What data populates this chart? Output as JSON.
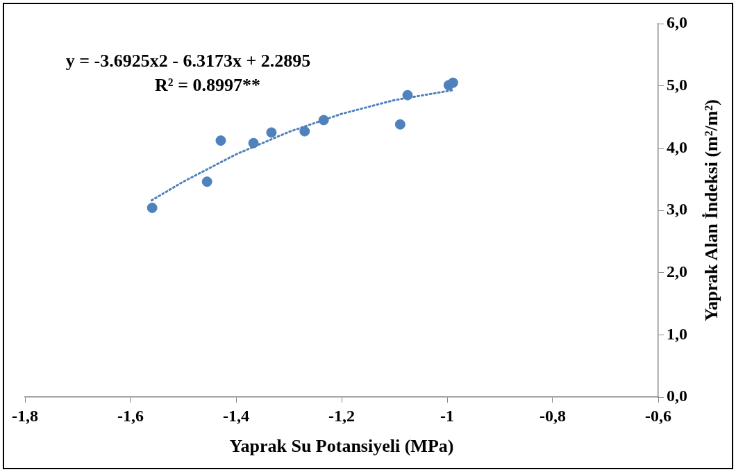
{
  "chart_data": {
    "type": "scatter",
    "xlabel": "Yaprak Su Potansiyeli (MPa)",
    "y2label": "Yaprak Alan İndeksi (m²/m²)",
    "annotations": [
      "y = -3.6925x2 - 6.3173x + 2.2895",
      "R² = 0.8997**"
    ],
    "series": [
      {
        "type": "scatter",
        "color": "#4f81bd",
        "marker": "circle",
        "x": [
          -1.559,
          -1.455,
          -1.429,
          -1.367,
          -1.333,
          -1.27,
          -1.234,
          -1.089,
          -1.075,
          -0.997,
          -0.989
        ],
        "values": [
          3.04,
          3.46,
          4.12,
          4.08,
          4.25,
          4.27,
          4.45,
          4.38,
          4.85,
          5.01,
          5.05
        ],
        "axis": "y2"
      },
      {
        "type": "line",
        "color": "#4f81bd",
        "marker": "none",
        "line_style": "dotted",
        "x": [
          -1.56,
          -1.5,
          -1.4,
          -1.3,
          -1.2,
          -1.1,
          -0.99
        ],
        "values": [
          3.16,
          3.46,
          3.9,
          4.26,
          4.55,
          4.77,
          4.93
        ],
        "axis": "y2"
      }
    ],
    "xlim": [
      -1.8,
      -0.6
    ],
    "xticks": [
      {
        "value": -1.8,
        "label": "-1,8"
      },
      {
        "value": -1.6,
        "label": "-1,6"
      },
      {
        "value": -1.4,
        "label": "-1,4"
      },
      {
        "value": -1.2,
        "label": "-1,2"
      },
      {
        "value": -1,
        "label": "-1"
      },
      {
        "value": -0.8,
        "label": "-0,8"
      },
      {
        "value": -0.6,
        "label": "-0,6"
      }
    ],
    "y2lim": [
      0,
      6
    ],
    "y2ticks": [
      {
        "value": 0,
        "label": "0,0"
      },
      {
        "value": 1,
        "label": "1,0"
      },
      {
        "value": 2,
        "label": "2,0"
      },
      {
        "value": 3,
        "label": "3,0"
      },
      {
        "value": 4,
        "label": "4,0"
      },
      {
        "value": 5,
        "label": "5,0"
      },
      {
        "value": 6,
        "label": "6,0"
      }
    ],
    "grid": false,
    "legend": false
  }
}
